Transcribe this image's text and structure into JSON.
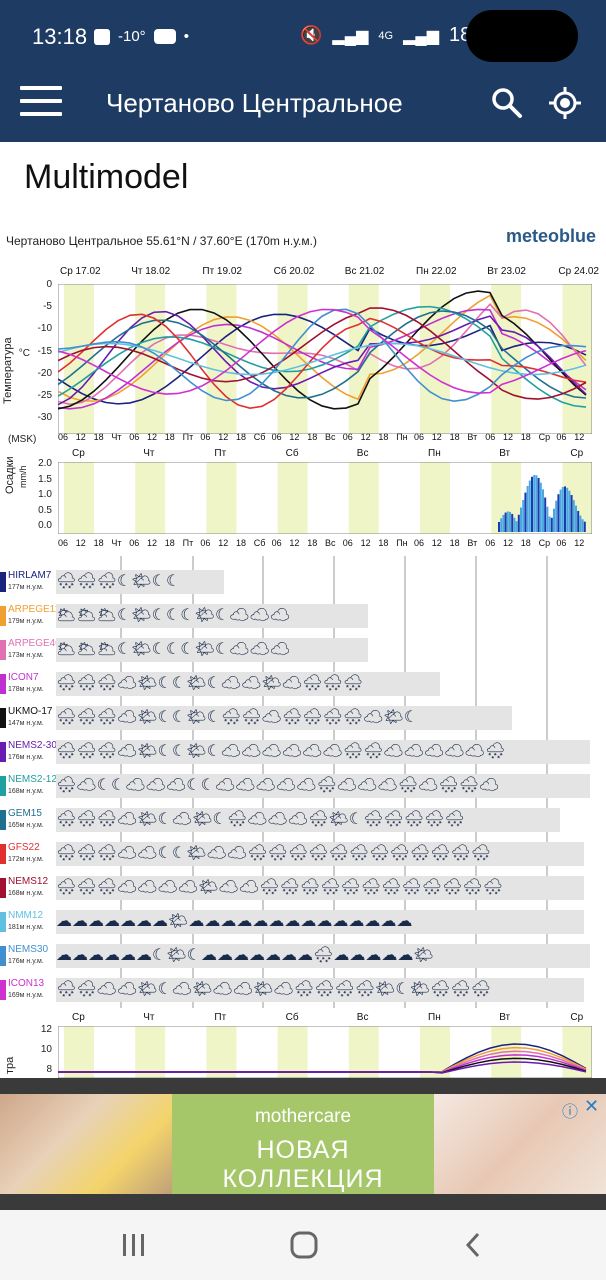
{
  "status_bar": {
    "time": "13:18",
    "temperature": "-10°",
    "battery": "18%",
    "network": "4G"
  },
  "app_bar": {
    "title": "Чертаново Центральное",
    "menu_icon": "hamburger-icon",
    "search_icon": "search-icon",
    "location_icon": "locate-icon"
  },
  "page": {
    "title": "Multimodel"
  },
  "figure": {
    "location_line": "Чертаново Центральное  55.61°N / 37.60°E (170m н.у.м.)",
    "brand": "meteoblue",
    "date_labels": [
      "Ср 17.02",
      "Чт 18.02",
      "Пт 19.02",
      "Сб 20.02",
      "Вс 21.02",
      "Пн 22.02",
      "Вт 23.02",
      "Ср 24.02"
    ],
    "day_labels": [
      "Ср",
      "Чт",
      "Пт",
      "Сб",
      "Вс",
      "Пн",
      "Вт",
      "Ср"
    ],
    "hour_axis": [
      "06",
      "12",
      "18",
      "Чт",
      "06",
      "12",
      "18",
      "Пт",
      "06",
      "12",
      "18",
      "Сб",
      "06",
      "12",
      "18",
      "Вс",
      "06",
      "12",
      "18",
      "Пн",
      "06",
      "12",
      "18",
      "Вт",
      "06",
      "12",
      "18",
      "Ср",
      "06",
      "12"
    ],
    "temperature_panel": {
      "ylabel": "Температура",
      "unit": "°C",
      "timezone": "(MSK)",
      "yticks": [
        "0",
        "-5",
        "-10",
        "-15",
        "-20",
        "-25",
        "-30"
      ]
    },
    "precip_panel": {
      "ylabel": "Осадки",
      "unit": "mm/h",
      "yticks": [
        "2.0",
        "1.5",
        "1.0",
        "0.5",
        "0.0"
      ]
    },
    "bottom_panel": {
      "ylabel": "тра",
      "yticks": [
        "12",
        "10",
        "8"
      ]
    },
    "models": [
      {
        "name": "HIRLAM7",
        "elev": "177м н.у.м.",
        "color": "#1a237e",
        "strip": "🌨🌨🌨☾🌤☾☾"
      },
      {
        "name": "ARPEGE11",
        "elev": "179м н.у.м.",
        "color": "#f0a030",
        "strip": "🌥🌥🌥☾🌤☾☾☾🌤☾☁☁☁"
      },
      {
        "name": "ARPEGE40",
        "elev": "173м н.у.м.",
        "color": "#e070b0",
        "strip": "🌥🌥🌥☾🌤☾☾☾🌤☾☁☁☁"
      },
      {
        "name": "ICON7",
        "elev": "178м н.у.м.",
        "color": "#c030d0",
        "strip": "🌨🌨🌨☁🌤☾☾🌤☾☁☁🌤☁🌨🌨🌨"
      },
      {
        "name": "UKMO-17",
        "elev": "147м н.у.м.",
        "color": "#111111",
        "strip": "🌨🌨🌨☁🌤☾☾🌤☾🌨🌨☁🌨🌨🌨🌨☁🌤☾"
      },
      {
        "name": "NEMS2-30",
        "elev": "176м н.у.м.",
        "color": "#6a1bb0",
        "strip": "🌨🌨🌨☁🌤☾☾🌤☾☁☁☁☁☁☁🌨🌨☁☁☁☁☁🌨"
      },
      {
        "name": "NEMS2-12",
        "elev": "168м н.у.м.",
        "color": "#20a0a0",
        "strip": "🌨☁☾☾☁☁☁☾☾☁☁☁☁☁🌨☁☁☁🌨☁🌨🌨☁"
      },
      {
        "name": "GEM15",
        "elev": "165м н.у.м.",
        "color": "#207090",
        "strip": "🌨🌨🌨☁🌤☾☁🌤☾🌨☁☁☁🌨🌤☾🌨🌨🌨🌨🌨"
      },
      {
        "name": "GFS22",
        "elev": "172м н.у.м.",
        "color": "#e03030",
        "strip": "🌨🌨🌨☁☁☾☾🌤☁☁🌨🌨🌨🌨🌨🌨🌨🌨🌨🌨🌨🌨"
      },
      {
        "name": "NEMS12",
        "elev": "168м н.у.м.",
        "color": "#a01030",
        "strip": "🌨🌨🌨☁☁☁☁🌤☁☁🌨🌨🌨🌨🌨🌨🌨🌨🌨🌨🌨🌨"
      },
      {
        "name": "NMM12",
        "elev": "181м н.у.м.",
        "color": "#60c0e0",
        "strip": "☁☁☁☁☁☁☁🌤☁☁☁☁☁☁☁☁☁☁☁☁☁☁"
      },
      {
        "name": "NEMS30",
        "elev": "176м н.у.м.",
        "color": "#4090d0",
        "strip": "☁☁☁☁☁☁☾🌤☾☁☁☁☁☁☁☁🌨☁☁☁☁☁🌤"
      },
      {
        "name": "ICON13",
        "elev": "169м н.у.м.",
        "color": "#d030d0",
        "strip": "🌨🌨☁☁🌤☾☁🌤☁☁🌤☁🌨🌨🌨🌨🌤☾🌤🌨🌨🌨"
      }
    ]
  },
  "ad": {
    "brand": "mothercare",
    "headline": "НОВАЯ КОЛЛЕКЦИЯ",
    "info_icon": "ⓘ",
    "close_icon": "✕"
  },
  "nav": {
    "recents_icon": "recents-icon",
    "home_icon": "home-icon",
    "back_icon": "back-icon"
  }
}
